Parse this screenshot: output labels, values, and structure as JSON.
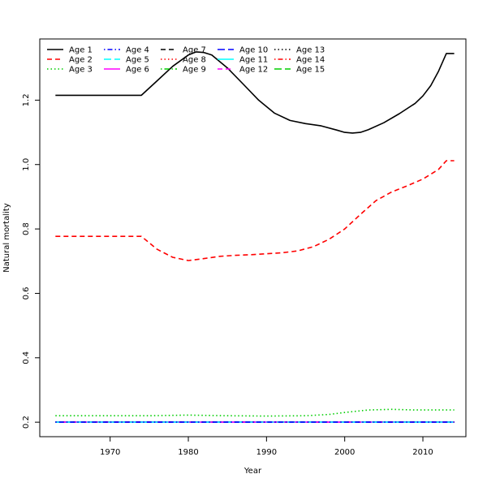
{
  "chart_data": {
    "type": "line",
    "title": "",
    "xlabel": "Year",
    "ylabel": "Natural mortality",
    "xlim": [
      1961,
      2015.5
    ],
    "ylim": [
      0.155,
      1.39
    ],
    "x_ticks": [
      1970,
      1980,
      1990,
      2000,
      2010
    ],
    "y_ticks": [
      0.2,
      0.4,
      0.6,
      0.8,
      1.0,
      1.2
    ],
    "x_tick_labels": [
      "1970",
      "1980",
      "1990",
      "2000",
      "2010"
    ],
    "y_tick_labels": [
      "0.2",
      "0.4",
      "0.6",
      "0.8",
      "1.0",
      "1.2"
    ],
    "legend_position": "top-left",
    "series": [
      {
        "name": "Age 1",
        "color": "#000000",
        "dash": "solid",
        "x": [
          1963,
          1974,
          1976,
          1978,
          1980,
          1981,
          1982,
          1983,
          1985,
          1987,
          1989,
          1991,
          1993,
          1995,
          1997,
          1999,
          2000,
          2001,
          2002,
          2003,
          2005,
          2007,
          2009,
          2010,
          2011,
          2012,
          2013,
          2014
        ],
        "y": [
          1.215,
          1.215,
          1.26,
          1.305,
          1.34,
          1.35,
          1.348,
          1.34,
          1.3,
          1.25,
          1.2,
          1.16,
          1.137,
          1.127,
          1.12,
          1.107,
          1.1,
          1.098,
          1.1,
          1.108,
          1.13,
          1.158,
          1.19,
          1.213,
          1.245,
          1.29,
          1.345,
          1.345
        ]
      },
      {
        "name": "Age 2",
        "color": "#ff0000",
        "dash": "dashed",
        "x": [
          1963,
          1974,
          1976,
          1978,
          1980,
          1982,
          1984,
          1986,
          1988,
          1990,
          1992,
          1994,
          1996,
          1998,
          2000,
          2002,
          2004,
          2006,
          2008,
          2010,
          2012,
          2013,
          2014
        ],
        "y": [
          0.777,
          0.777,
          0.737,
          0.712,
          0.702,
          0.708,
          0.715,
          0.718,
          0.72,
          0.723,
          0.726,
          0.732,
          0.745,
          0.768,
          0.8,
          0.845,
          0.888,
          0.915,
          0.934,
          0.955,
          0.985,
          1.012,
          1.012
        ]
      },
      {
        "name": "Age 3",
        "color": "#00cd00",
        "dash": "dotted",
        "x": [
          1963,
          1975,
          1980,
          1985,
          1990,
          1995,
          1998,
          2000,
          2003,
          2006,
          2009,
          2014
        ],
        "y": [
          0.22,
          0.22,
          0.222,
          0.22,
          0.219,
          0.22,
          0.224,
          0.23,
          0.238,
          0.24,
          0.238,
          0.238
        ]
      },
      {
        "name": "Age 4",
        "color": "#0000ff",
        "dash": "dotdash",
        "x": [
          1963,
          2014
        ],
        "y": [
          0.2,
          0.2
        ]
      },
      {
        "name": "Age 5",
        "color": "#00ffff",
        "dash": "longdash",
        "x": [
          1963,
          2014
        ],
        "y": [
          0.2,
          0.2
        ]
      },
      {
        "name": "Age 6",
        "color": "#ff00ff",
        "dash": "solid",
        "x": [
          1963,
          2014
        ],
        "y": [
          0.2,
          0.2
        ]
      },
      {
        "name": "Age 7",
        "color": "#000000",
        "dash": "dashed",
        "x": [
          1963,
          2014
        ],
        "y": [
          0.2,
          0.2
        ]
      },
      {
        "name": "Age 8",
        "color": "#ff0000",
        "dash": "dotted",
        "x": [
          1963,
          2014
        ],
        "y": [
          0.2,
          0.2
        ]
      },
      {
        "name": "Age 9",
        "color": "#00cd00",
        "dash": "dotdash",
        "x": [
          1963,
          2014
        ],
        "y": [
          0.2,
          0.2
        ]
      },
      {
        "name": "Age 10",
        "color": "#0000ff",
        "dash": "longdash",
        "x": [
          1963,
          2014
        ],
        "y": [
          0.2,
          0.2
        ]
      },
      {
        "name": "Age 11",
        "color": "#00ffff",
        "dash": "solid",
        "x": [
          1963,
          2014
        ],
        "y": [
          0.2,
          0.2
        ]
      },
      {
        "name": "Age 12",
        "color": "#ff00ff",
        "dash": "dashed",
        "x": [
          1963,
          2014
        ],
        "y": [
          0.2,
          0.2
        ]
      },
      {
        "name": "Age 13",
        "color": "#000000",
        "dash": "dotted",
        "x": [
          1963,
          2014
        ],
        "y": [
          0.2,
          0.2
        ]
      },
      {
        "name": "Age 14",
        "color": "#ff0000",
        "dash": "dotdash",
        "x": [
          1963,
          2014
        ],
        "y": [
          0.2,
          0.2
        ]
      },
      {
        "name": "Age 15",
        "color": "#00cd00",
        "dash": "longdash",
        "x": [
          1963,
          2014
        ],
        "y": [
          0.2,
          0.2
        ]
      }
    ]
  }
}
